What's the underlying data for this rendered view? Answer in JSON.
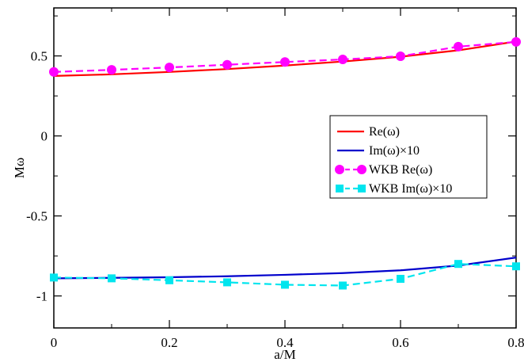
{
  "chart_data": {
    "type": "line",
    "title": "",
    "xlabel": "a/M",
    "ylabel": "Mω",
    "xlim": [
      0,
      0.8
    ],
    "ylim": [
      -1.2,
      0.8
    ],
    "grid": false,
    "legend_position": "right",
    "x_ticks": [
      {
        "value": 0,
        "label": "0"
      },
      {
        "value": 0.2,
        "label": "0.2"
      },
      {
        "value": 0.4,
        "label": "0.4"
      },
      {
        "value": 0.6,
        "label": "0.6"
      },
      {
        "value": 0.8,
        "label": "0.8"
      }
    ],
    "y_ticks": [
      {
        "value": -1,
        "label": "-1"
      },
      {
        "value": -0.5,
        "label": "-0.5"
      },
      {
        "value": 0,
        "label": "0"
      },
      {
        "value": 0.5,
        "label": "0.5"
      }
    ],
    "series": [
      {
        "name": "Re(ω)",
        "color": "#ff0000",
        "style": "solid",
        "marker": "none",
        "x": [
          0,
          0.1,
          0.2,
          0.3,
          0.4,
          0.5,
          0.6,
          0.7,
          0.8
        ],
        "y": [
          0.375,
          0.385,
          0.4,
          0.418,
          0.44,
          0.465,
          0.495,
          0.535,
          0.59
        ]
      },
      {
        "name": "Im(ω)×10",
        "color": "#0000cc",
        "style": "solid",
        "marker": "none",
        "x": [
          0,
          0.1,
          0.2,
          0.3,
          0.4,
          0.5,
          0.6,
          0.7,
          0.8
        ],
        "y": [
          -0.89,
          -0.887,
          -0.883,
          -0.877,
          -0.868,
          -0.857,
          -0.84,
          -0.81,
          -0.76
        ]
      },
      {
        "name": "WKB Re(ω)",
        "color": "#ff00ff",
        "style": "dashed",
        "marker": "circle",
        "x": [
          0,
          0.1,
          0.2,
          0.3,
          0.4,
          0.5,
          0.6,
          0.7,
          0.8
        ],
        "y": [
          0.4,
          0.413,
          0.428,
          0.445,
          0.462,
          0.478,
          0.498,
          0.558,
          0.588
        ]
      },
      {
        "name": "WKB Im(ω)×10",
        "color": "#00e5ee",
        "style": "dashed",
        "marker": "square",
        "x": [
          0,
          0.1,
          0.2,
          0.3,
          0.4,
          0.5,
          0.6,
          0.7,
          0.8
        ],
        "y": [
          -0.885,
          -0.89,
          -0.902,
          -0.915,
          -0.93,
          -0.935,
          -0.893,
          -0.8,
          -0.815
        ]
      }
    ]
  }
}
